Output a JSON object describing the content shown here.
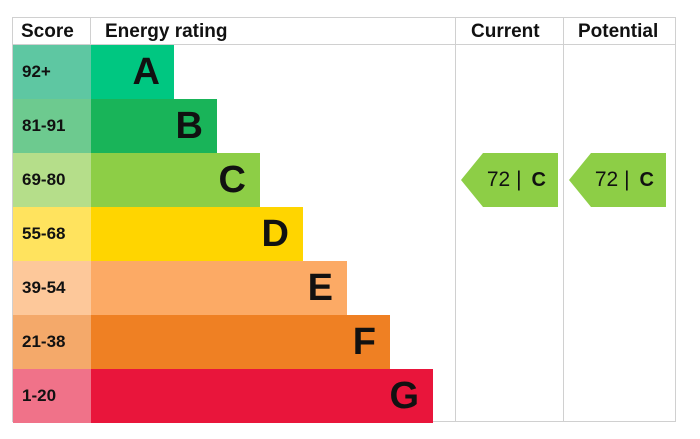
{
  "chart_data": {
    "type": "table",
    "headers": {
      "score": "Score",
      "rating": "Energy rating",
      "current": "Current",
      "potential": "Potential"
    },
    "bands": [
      {
        "score": "92+",
        "letter": "A",
        "color": "#00c781",
        "score_color": "#5ec7a2"
      },
      {
        "score": "81-91",
        "letter": "B",
        "color": "#19b459",
        "score_color": "#6dca8f"
      },
      {
        "score": "69-80",
        "letter": "C",
        "color": "#8dce46",
        "score_color": "#b5de8a"
      },
      {
        "score": "55-68",
        "letter": "D",
        "color": "#ffd500",
        "score_color": "#ffe35e"
      },
      {
        "score": "39-54",
        "letter": "E",
        "color": "#fcaa65",
        "score_color": "#fdc89a"
      },
      {
        "score": "21-38",
        "letter": "F",
        "color": "#ef8023",
        "score_color": "#f4a96a"
      },
      {
        "score": "1-20",
        "letter": "G",
        "color": "#e9153b",
        "score_color": "#f07289"
      }
    ],
    "current": {
      "value": "72",
      "separator": "|",
      "letter": "C",
      "band_index": 2,
      "color": "#8dce46"
    },
    "potential": {
      "value": "72",
      "separator": "|",
      "letter": "C",
      "band_index": 2,
      "color": "#8dce46"
    }
  }
}
